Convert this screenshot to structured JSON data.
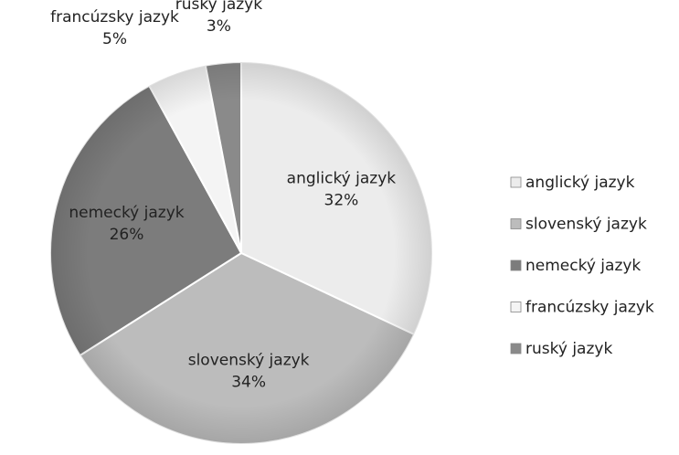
{
  "chart_data": {
    "type": "pie",
    "categories": [
      "anglický jazyk",
      "slovenský jazyk",
      "nemecký jazyk",
      "francúzsky jazyk",
      "ruský jazyk"
    ],
    "values": [
      32,
      34,
      26,
      5,
      3
    ],
    "value_labels": [
      "32%",
      "34%",
      "26%",
      "5%",
      "3%"
    ],
    "colors": [
      "#ececec",
      "#bcbcbc",
      "#7c7c7c",
      "#f4f4f4",
      "#8a8a8a"
    ],
    "legend": "right"
  }
}
